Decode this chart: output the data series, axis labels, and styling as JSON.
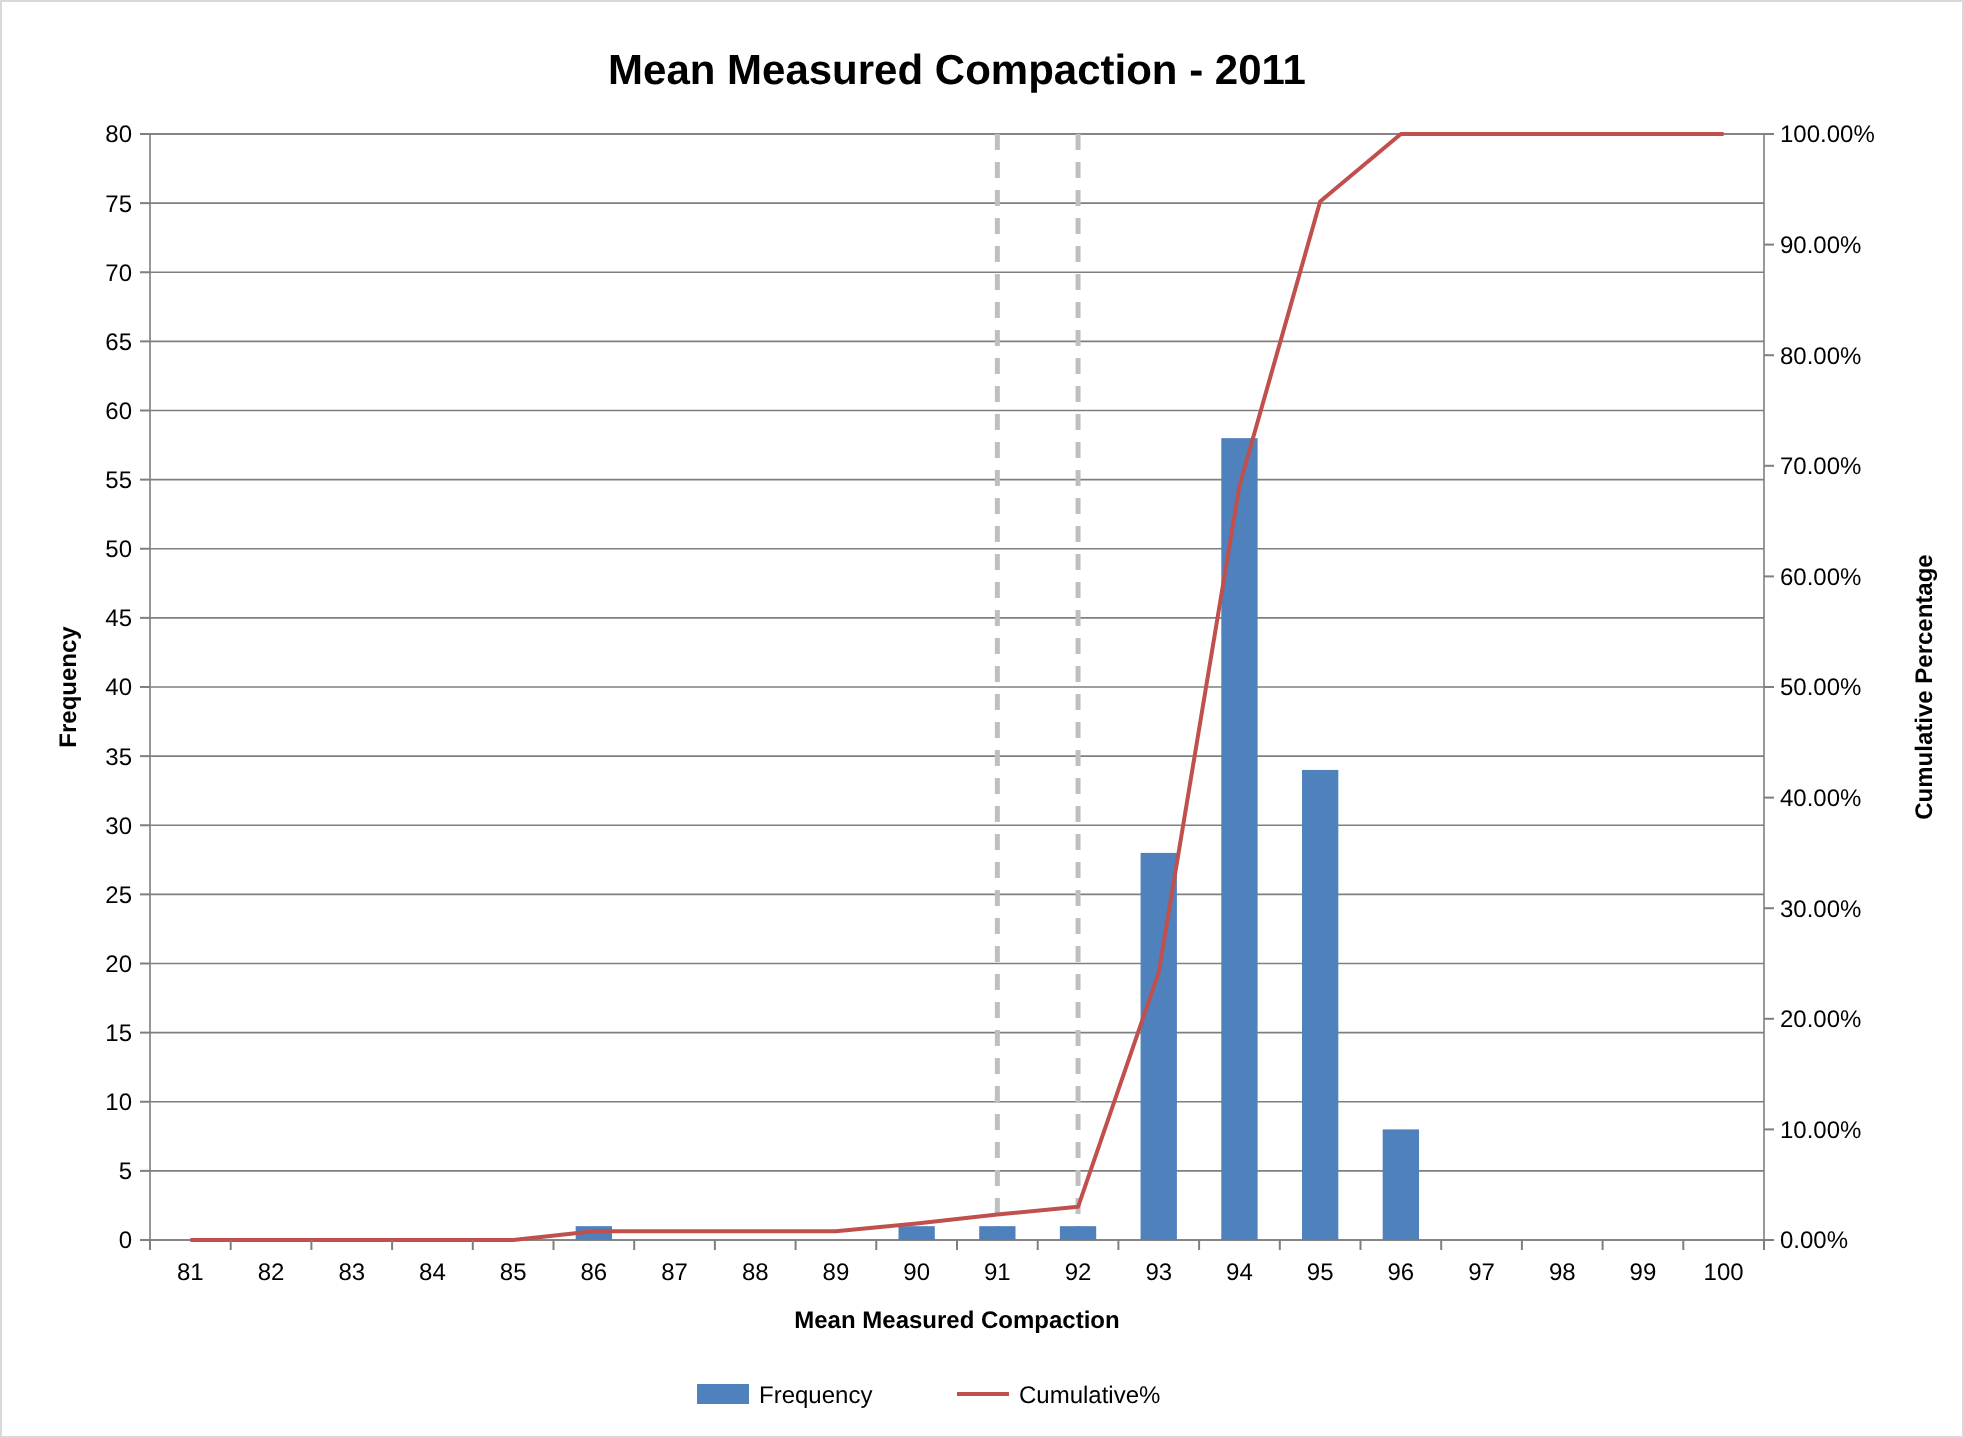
{
  "chart_data": {
    "type": "bar",
    "title": "Mean Measured Compaction - 2011",
    "xlabel": "Mean Measured Compaction",
    "ylabel": "Frequency",
    "y2label": "Cumulative Percentage",
    "categories": [
      "81",
      "82",
      "83",
      "84",
      "85",
      "86",
      "87",
      "88",
      "89",
      "90",
      "91",
      "92",
      "93",
      "94",
      "95",
      "96",
      "97",
      "98",
      "99",
      "100"
    ],
    "series": [
      {
        "name": "Frequency",
        "color": "#4f81bd",
        "values": [
          0,
          0,
          0,
          0,
          0,
          1,
          0,
          0,
          0,
          1,
          1,
          1,
          28,
          58,
          34,
          8,
          0,
          0,
          0,
          0
        ]
      },
      {
        "name": "Cumulative%",
        "type": "line",
        "axis": "y2",
        "color": "#c0504d",
        "values": [
          0,
          0,
          0,
          0,
          0,
          0.8,
          0.8,
          0.8,
          0.8,
          1.5,
          2.3,
          3,
          24.2,
          68.2,
          93.9,
          100,
          100,
          100,
          100,
          100
        ]
      }
    ],
    "ylim": [
      0,
      80
    ],
    "yticks": [
      0,
      5,
      10,
      15,
      20,
      25,
      30,
      35,
      40,
      45,
      50,
      55,
      60,
      65,
      70,
      75,
      80
    ],
    "y2lim": [
      0,
      100
    ],
    "y2ticks": [
      {
        "value": 0,
        "label": "0.00%"
      },
      {
        "value": 10,
        "label": "10.00%"
      },
      {
        "value": 20,
        "label": "20.00%"
      },
      {
        "value": 30,
        "label": "30.00%"
      },
      {
        "value": 40,
        "label": "40.00%"
      },
      {
        "value": 50,
        "label": "50.00%"
      },
      {
        "value": 60,
        "label": "60.00%"
      },
      {
        "value": 70,
        "label": "70.00%"
      },
      {
        "value": 80,
        "label": "80.00%"
      },
      {
        "value": 90,
        "label": "90.00%"
      },
      {
        "value": 100,
        "label": "100.00%"
      }
    ],
    "ref_lines": [
      {
        "axis": "x",
        "value": "91",
        "color": "#bfbfbf",
        "line_style": "dashed"
      },
      {
        "axis": "x",
        "value": "92",
        "color": "#bfbfbf",
        "line_style": "dashed"
      }
    ],
    "grid": "y",
    "legend": "bottom",
    "marker": "none",
    "line_style": "solid"
  }
}
